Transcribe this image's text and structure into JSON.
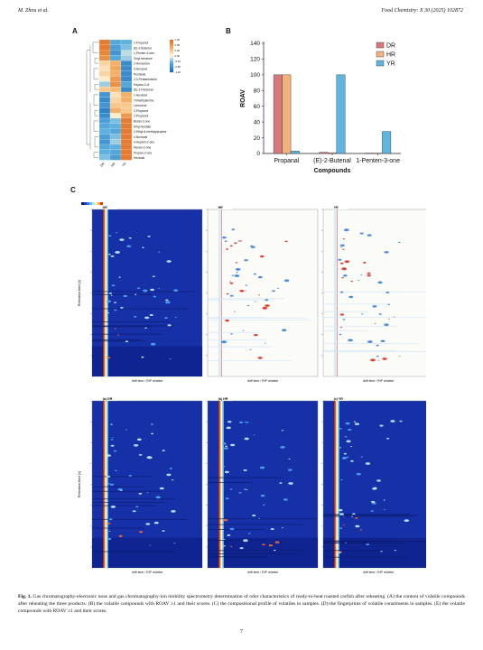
{
  "header": {
    "left": "M. Zhou et al.",
    "right": "Food Chemistry: X 30 (2025) 102872"
  },
  "panels": {
    "a": "A",
    "b": "B",
    "c": "C"
  },
  "heatmap": {
    "compounds": [
      "1-Propanol",
      "(E)-2-Butenal",
      "1-Penten-3-one",
      "Vinyl benzene",
      "2-Hexanone",
      "3-Hexanol",
      "Pentanal",
      "2,3-Pentanedione",
      "Heptan-2-ol",
      "(E)-2-Pentenal",
      "1-Hexanol",
      "Trimethylamine",
      "Limonene",
      "2-Propanol",
      "2-Propanol",
      "Butan-2-one",
      "Ethyl Acetate",
      "2-Ethyl-6-methylpyrazine",
      "n-Nonanal",
      "3-Heptan-2-one",
      "Nonan-2-one",
      "Propan-2-one",
      "Hexanal"
    ],
    "samples": [
      "DR",
      "HR",
      "YR"
    ],
    "legend_ticks": [
      "1.20",
      "0.80",
      "0.40",
      "0.00",
      "-0.40",
      "-0.80",
      "-1.20"
    ],
    "values": [
      [
        1.1,
        -0.6,
        -0.5
      ],
      [
        1.1,
        -0.7,
        -0.4
      ],
      [
        1.0,
        -0.8,
        -0.2
      ],
      [
        0.9,
        -0.6,
        -0.3
      ],
      [
        0.3,
        0.6,
        -0.9
      ],
      [
        0.2,
        0.7,
        -0.9
      ],
      [
        0.3,
        0.6,
        -0.9
      ],
      [
        0.1,
        0.8,
        -0.9
      ],
      [
        -0.3,
        0.9,
        -0.6
      ],
      [
        0.4,
        0.5,
        -0.9
      ],
      [
        -0.8,
        0.2,
        0.6
      ],
      [
        -0.9,
        0.3,
        0.6
      ],
      [
        -0.8,
        0.4,
        0.4
      ],
      [
        -1.0,
        0.6,
        0.4
      ],
      [
        -0.9,
        0.1,
        0.8
      ],
      [
        -0.7,
        -0.4,
        1.1
      ],
      [
        -0.6,
        -0.5,
        1.1
      ],
      [
        -0.5,
        -0.6,
        1.1
      ],
      [
        -0.7,
        -0.4,
        1.1
      ],
      [
        -0.8,
        -0.3,
        1.1
      ],
      [
        -0.6,
        -0.5,
        1.1
      ],
      [
        -0.5,
        -0.6,
        1.1
      ],
      [
        -0.4,
        -0.7,
        1.1
      ]
    ]
  },
  "chart_data": {
    "type": "bar",
    "categories": [
      "Propanal",
      "(E)-2-Butenal",
      "1-Penten-3-one"
    ],
    "series": [
      {
        "name": "DR",
        "values": [
          100,
          1.5,
          0.5
        ]
      },
      {
        "name": "HR",
        "values": [
          100,
          1.0,
          0.5
        ]
      },
      {
        "name": "YR",
        "values": [
          3,
          100,
          28
        ]
      }
    ],
    "xlabel": "Compounds",
    "ylabel": "ROAV",
    "ylim": [
      0,
      140
    ],
    "yticks": [
      0,
      20,
      40,
      60,
      80,
      100,
      120,
      140
    ],
    "legend_position": "top-right",
    "colors": {
      "DR": "#d9787a",
      "HR": "#f3b27c",
      "YR": "#5fb4e0"
    }
  },
  "gcims": {
    "top_row_labels": [
      "DR",
      "HR",
      "YR"
    ],
    "bottom_row_labels": [
      "(a) DR",
      "(b) HR",
      "(c) YR"
    ],
    "y_axis_label": "Retention time [s]",
    "x_axis_label": "drift time / RIP relative"
  },
  "caption": {
    "label": "Fig. 1.",
    "text": "Gas chromatography-electronic nose and gas chromatography-ion mobility spectrometry determination of odor characteristics of ready-to-heat roasted carfish after reheating. (A) the content of volatile compounds after reheating the three products. (B) the volatile compounds with ROAV ≥1 and their scores. (C) the compositional profile of volatiles in samples. (D) the fingerprints of volatile constituents in samples. (E) the volatile compounds with ROAV ≥1 and their scores."
  },
  "page_number": "7"
}
